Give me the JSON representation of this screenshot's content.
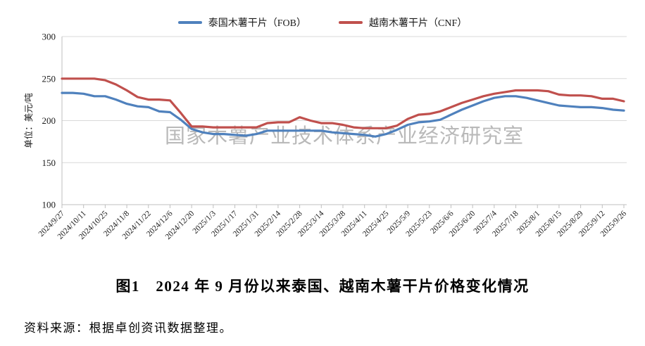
{
  "figure": {
    "title": "图1　2024 年 9 月份以来泰国、越南木薯干片价格变化情况",
    "source": "资料来源：根据卓创资讯数据整理。"
  },
  "chart_data": {
    "type": "line",
    "ylabel": "单位：美元/吨",
    "ylim": [
      100,
      300
    ],
    "yticks": [
      100,
      150,
      200,
      250,
      300
    ],
    "grid": "horizontal",
    "legend_position": "top-center",
    "watermark": "国家木薯产业技术体系产业经济研究室",
    "points_per_label": 2,
    "x_labels": [
      "2024/9/27",
      "2024/10/11",
      "2024/10/25",
      "2024/11/8",
      "2024/11/22",
      "2024/12/6",
      "2024/12/20",
      "2025/1/3",
      "2025/1/17",
      "2025/1/31",
      "2025/2/14",
      "2025/2/28",
      "2025/3/14",
      "2025/3/28",
      "2025/4/11",
      "2025/4/25",
      "2025/5/9",
      "2025/5/23",
      "2025/6/6",
      "2025/6/20",
      "2025/7/4",
      "2025/7/18",
      "2025/8/1",
      "2025/8/15",
      "2025/8/29",
      "2025/9/12",
      "2025/9/26"
    ],
    "series": [
      {
        "name": "泰国木薯干片（FOB）",
        "color": "#4F81BD",
        "values": [
          233,
          233,
          232,
          229,
          229,
          225,
          220,
          217,
          216,
          211,
          210,
          201,
          190,
          186,
          184,
          184,
          183,
          182,
          184,
          188,
          188,
          188,
          188,
          188,
          188,
          186,
          185,
          184,
          183,
          181,
          184,
          189,
          195,
          198,
          199,
          201,
          207,
          213,
          218,
          223,
          227,
          229,
          229,
          227,
          224,
          221,
          218,
          217,
          216,
          216,
          215,
          213,
          212
        ]
      },
      {
        "name": "越南木薯干片（CNF）",
        "color": "#C0504D",
        "values": [
          250,
          250,
          250,
          250,
          248,
          243,
          236,
          228,
          225,
          225,
          224,
          209,
          193,
          193,
          192,
          192,
          192,
          192,
          192,
          197,
          198,
          198,
          204,
          200,
          197,
          197,
          195,
          192,
          191,
          191,
          191,
          194,
          202,
          207,
          208,
          211,
          216,
          221,
          225,
          229,
          232,
          234,
          236,
          236,
          236,
          235,
          231,
          230,
          230,
          229,
          226,
          226,
          223
        ]
      }
    ],
    "colors": {
      "grid": "#d9d9d9",
      "axis": "#bfbfbf",
      "tick_text": "#1a1a1a",
      "watermark": "#a8a8a8"
    }
  }
}
